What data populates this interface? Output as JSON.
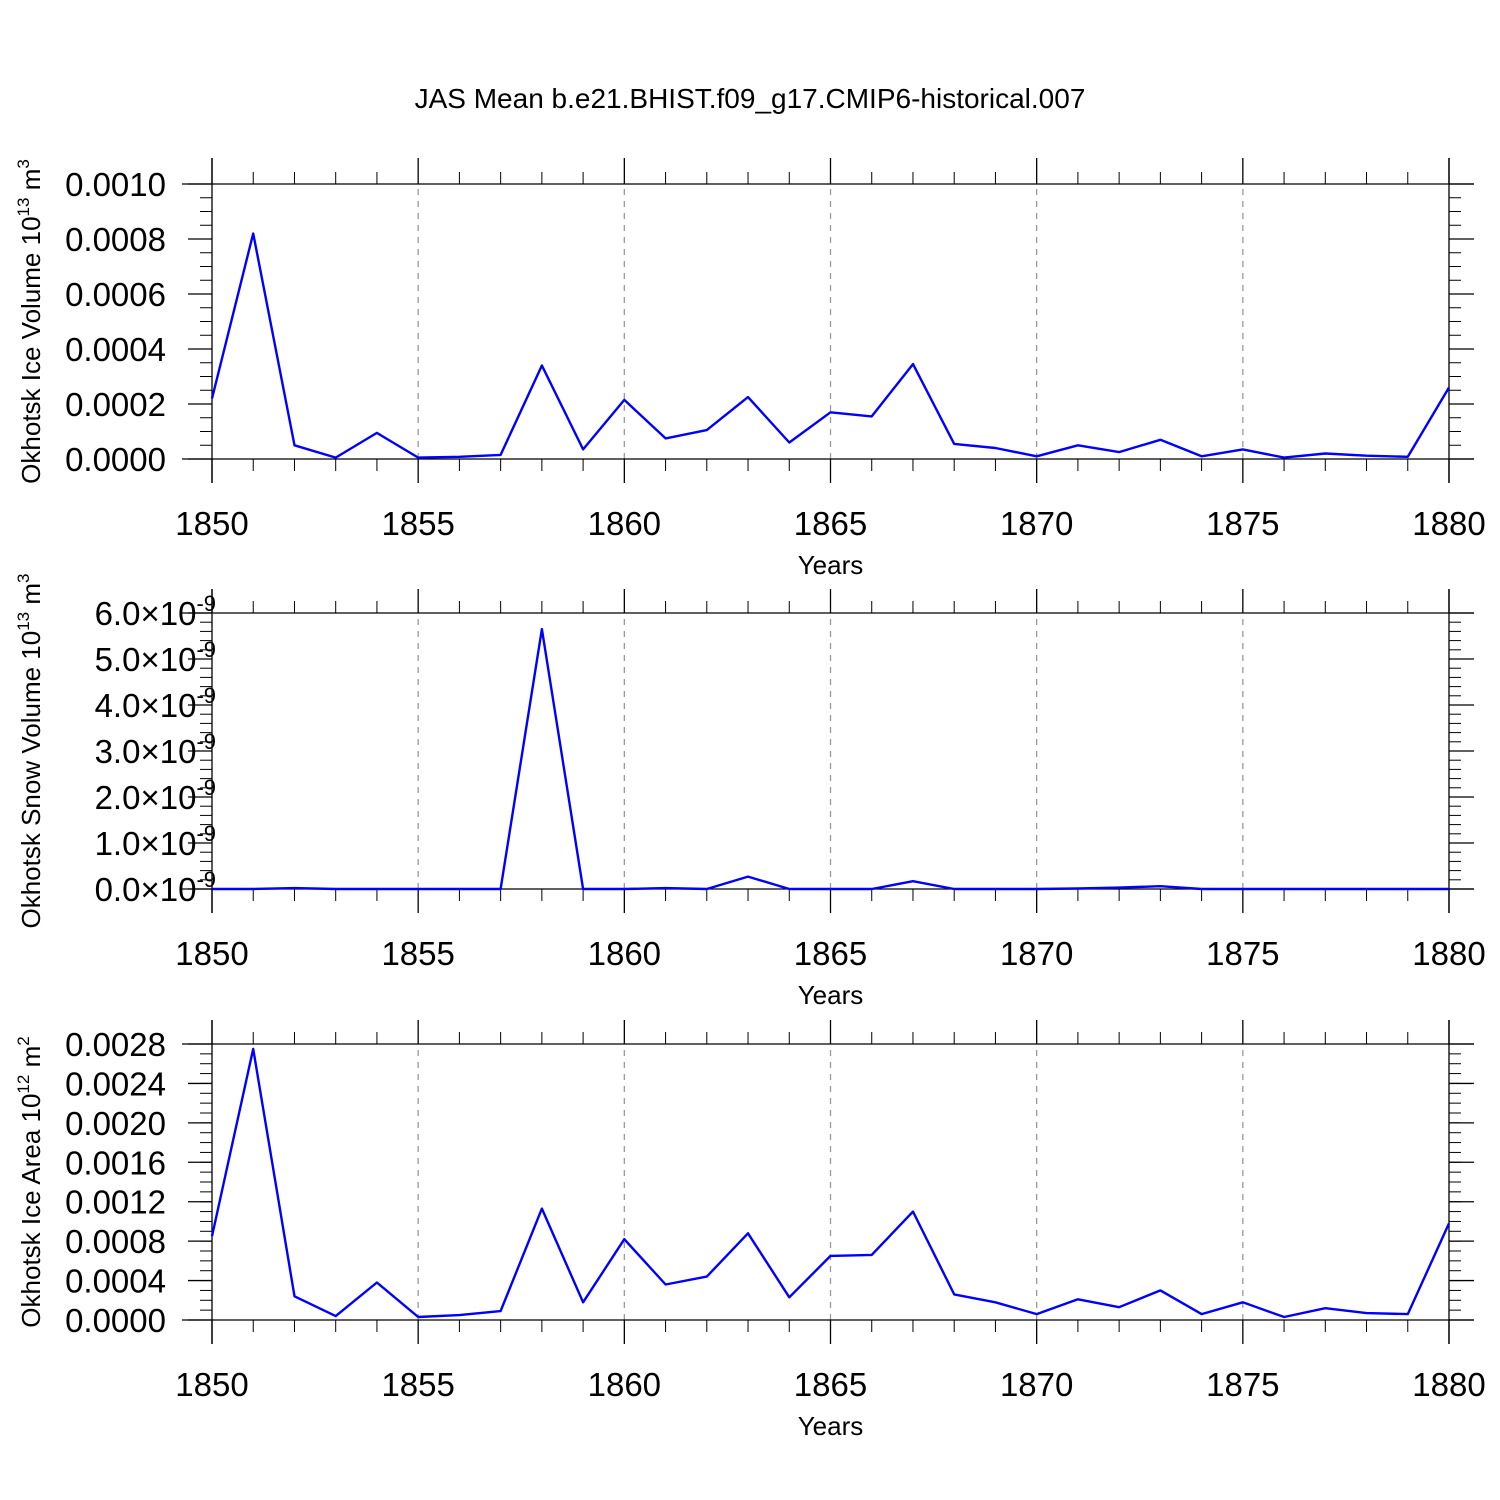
{
  "title": "JAS Mean b.e21.BHIST.f09_g17.CMIP6-historical.007",
  "line_color": "#0000ff",
  "grid_color": "#9a9a9a",
  "chart_data": [
    {
      "type": "line",
      "xlabel": "Years",
      "ylabel_main": "Okhotsk Ice Volume 10",
      "ylabel_exp": "13",
      "ylabel_unit": " m",
      "ylabel_unit_exp": "3",
      "xlim": [
        1850,
        1880
      ],
      "ylim": [
        0,
        0.001
      ],
      "x_ticks": [
        1850,
        1855,
        1860,
        1865,
        1870,
        1875,
        1880
      ],
      "x_tick_labels": [
        "1850",
        "1855",
        "1860",
        "1865",
        "1870",
        "1875",
        "1880"
      ],
      "y_ticks": [
        0,
        0.0002,
        0.0004,
        0.0006,
        0.0008,
        0.001
      ],
      "y_tick_labels": [
        "0.0000",
        "0.0002",
        "0.0004",
        "0.0006",
        "0.0008",
        "0.0010"
      ],
      "y_tick_exponent": "",
      "y_minor_step": 5e-05,
      "grid": "vertical dashed at major x ticks",
      "x": [
        1850,
        1851,
        1852,
        1853,
        1854,
        1855,
        1856,
        1857,
        1858,
        1859,
        1860,
        1861,
        1862,
        1863,
        1864,
        1865,
        1866,
        1867,
        1868,
        1869,
        1870,
        1871,
        1872,
        1873,
        1874,
        1875,
        1876,
        1877,
        1878,
        1879,
        1880
      ],
      "series": [
        {
          "values": [
            0.00022,
            0.00082,
            5e-05,
            5e-06,
            9.5e-05,
            5e-06,
            8e-06,
            1.5e-05,
            0.00034,
            3.5e-05,
            0.000215,
            7.5e-05,
            0.000105,
            0.000225,
            6e-05,
            0.00017,
            0.000155,
            0.000345,
            5.5e-05,
            4e-05,
            1e-05,
            5e-05,
            2.5e-05,
            7e-05,
            1e-05,
            3.5e-05,
            5e-06,
            2e-05,
            1.2e-05,
            8e-06,
            0.00026
          ]
        }
      ]
    },
    {
      "type": "line",
      "xlabel": "Years",
      "ylabel_main": "Okhotsk Snow Volume 10",
      "ylabel_exp": "13",
      "ylabel_unit": " m",
      "ylabel_unit_exp": "3",
      "xlim": [
        1850,
        1880
      ],
      "ylim": [
        0,
        6e-09
      ],
      "x_ticks": [
        1850,
        1855,
        1860,
        1865,
        1870,
        1875,
        1880
      ],
      "x_tick_labels": [
        "1850",
        "1855",
        "1860",
        "1865",
        "1870",
        "1875",
        "1880"
      ],
      "y_ticks": [
        0,
        1e-09,
        2e-09,
        3e-09,
        4e-09,
        5e-09,
        6e-09
      ],
      "y_tick_labels": [
        "0.0",
        "1.0",
        "2.0",
        "3.0",
        "4.0",
        "5.0",
        "6.0"
      ],
      "y_tick_exponent": "-9",
      "y_minor_step": 2e-10,
      "grid": "vertical dashed at major x ticks",
      "x": [
        1850,
        1851,
        1852,
        1853,
        1854,
        1855,
        1856,
        1857,
        1858,
        1859,
        1860,
        1861,
        1862,
        1863,
        1864,
        1865,
        1866,
        1867,
        1868,
        1869,
        1870,
        1871,
        1872,
        1873,
        1874,
        1875,
        1876,
        1877,
        1878,
        1879,
        1880
      ],
      "series": [
        {
          "values": [
            0,
            0,
            2e-11,
            0,
            0,
            0,
            0,
            0,
            5.65e-09,
            0,
            0,
            2e-11,
            0,
            2.7e-10,
            0,
            0,
            0,
            1.7e-10,
            0,
            0,
            0,
            1e-11,
            3e-11,
            6e-11,
            0,
            0,
            0,
            0,
            0,
            0,
            0
          ]
        }
      ]
    },
    {
      "type": "line",
      "xlabel": "Years",
      "ylabel_main": "Okhotsk Ice Area 10",
      "ylabel_exp": "12",
      "ylabel_unit": " m",
      "ylabel_unit_exp": "2",
      "xlim": [
        1850,
        1880
      ],
      "ylim": [
        0,
        0.0028
      ],
      "x_ticks": [
        1850,
        1855,
        1860,
        1865,
        1870,
        1875,
        1880
      ],
      "x_tick_labels": [
        "1850",
        "1855",
        "1860",
        "1865",
        "1870",
        "1875",
        "1880"
      ],
      "y_ticks": [
        0,
        0.0004,
        0.0008,
        0.0012,
        0.0016,
        0.002,
        0.0024,
        0.0028
      ],
      "y_tick_labels": [
        "0.0000",
        "0.0004",
        "0.0008",
        "0.0012",
        "0.0016",
        "0.0020",
        "0.0024",
        "0.0028"
      ],
      "y_tick_exponent": "",
      "y_minor_step": 0.0001,
      "grid": "vertical dashed at major x ticks",
      "x": [
        1850,
        1851,
        1852,
        1853,
        1854,
        1855,
        1856,
        1857,
        1858,
        1859,
        1860,
        1861,
        1862,
        1863,
        1864,
        1865,
        1866,
        1867,
        1868,
        1869,
        1870,
        1871,
        1872,
        1873,
        1874,
        1875,
        1876,
        1877,
        1878,
        1879,
        1880
      ],
      "series": [
        {
          "values": [
            0.00085,
            0.00275,
            0.00024,
            4e-05,
            0.00038,
            3e-05,
            5e-05,
            9e-05,
            0.00113,
            0.00018,
            0.00082,
            0.00036,
            0.00044,
            0.00088,
            0.00023,
            0.00065,
            0.00066,
            0.0011,
            0.00026,
            0.00018,
            6e-05,
            0.00021,
            0.00013,
            0.0003,
            6e-05,
            0.00018,
            3e-05,
            0.00012,
            7e-05,
            6e-05,
            0.00098
          ]
        }
      ]
    }
  ]
}
